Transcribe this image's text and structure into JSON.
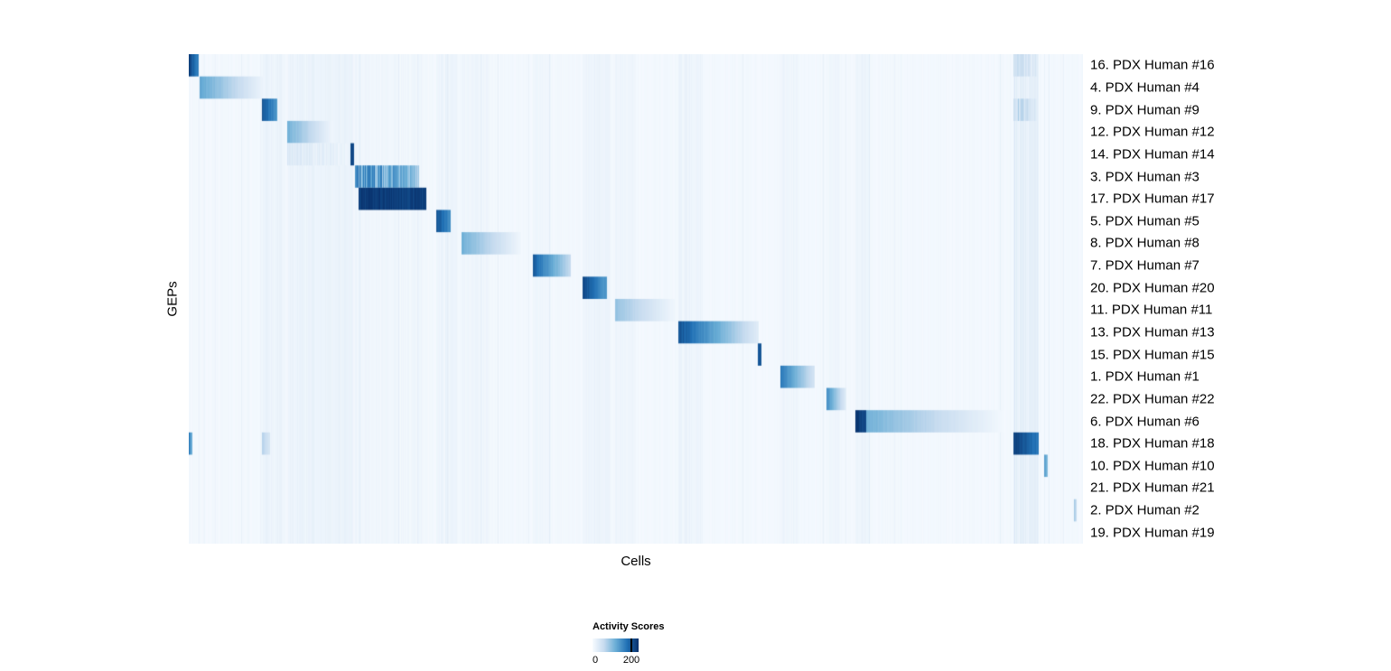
{
  "page": {
    "background": "#ffffff"
  },
  "chart_data": {
    "type": "heatmap",
    "title": "",
    "xlabel": "Cells",
    "ylabel": "GEPs",
    "rows": [
      "16. PDX Human #16",
      "4. PDX Human #4",
      "9. PDX Human #9",
      "12. PDX Human #12",
      "14. PDX Human #14",
      "3. PDX Human #3",
      "17. PDX Human #17",
      "5. PDX Human #5",
      "8. PDX Human #8",
      "7. PDX Human #7",
      "20. PDX Human #20",
      "11. PDX Human #11",
      "13. PDX Human #13",
      "15. PDX Human #15",
      "1. PDX Human #1",
      "22. PDX Human #22",
      "6. PDX Human #6",
      "18. PDX Human #18",
      "10. PDX Human #10",
      "21. PDX Human #21",
      "2. PDX Human #2",
      "19. PDX Human #19"
    ],
    "colorbar": {
      "title": "Activity Scores",
      "min": 0,
      "max": 200,
      "tick_labels": [
        "0",
        "200"
      ],
      "tick_positions": [
        0,
        0.82
      ],
      "colormap": "Blues",
      "anchors": [
        [
          0.0,
          "#f7fbff"
        ],
        [
          0.25,
          "#c6dbef"
        ],
        [
          0.5,
          "#6baed6"
        ],
        [
          0.75,
          "#2171b5"
        ],
        [
          1.0,
          "#08306b"
        ]
      ]
    },
    "base_value": 0.02,
    "bands": [
      {
        "x0": 0.08,
        "x1": 0.105,
        "v": 0.04
      },
      {
        "x0": 0.11,
        "x1": 0.184,
        "v": 0.035
      },
      {
        "x0": 0.186,
        "x1": 0.266,
        "v": 0.015
      },
      {
        "x0": 0.277,
        "x1": 0.3,
        "v": 0.03
      },
      {
        "x0": 0.305,
        "x1": 0.335,
        "v": 0.02
      },
      {
        "x0": 0.385,
        "x1": 0.405,
        "v": 0.02
      },
      {
        "x0": 0.44,
        "x1": 0.472,
        "v": 0.035
      },
      {
        "x0": 0.477,
        "x1": 0.5,
        "v": 0.02
      },
      {
        "x0": 0.547,
        "x1": 0.575,
        "v": 0.03
      },
      {
        "x0": 0.662,
        "x1": 0.682,
        "v": 0.02
      },
      {
        "x0": 0.713,
        "x1": 0.728,
        "v": 0.02
      },
      {
        "x0": 0.745,
        "x1": 0.762,
        "v": 0.03
      },
      {
        "x0": 0.922,
        "x1": 0.95,
        "v": 0.06
      }
    ],
    "segments": [
      {
        "row": 0,
        "x0": 0.0,
        "x1": 0.011,
        "v0": 0.95,
        "v1": 0.7
      },
      {
        "row": 0,
        "x0": 0.922,
        "x1": 0.948,
        "v0": 0.3,
        "v1": 0.15,
        "striate": true
      },
      {
        "row": 1,
        "x0": 0.012,
        "x1": 0.085,
        "v0": 0.55,
        "v1": 0.05
      },
      {
        "row": 2,
        "x0": 0.082,
        "x1": 0.099,
        "v0": 0.9,
        "v1": 0.6
      },
      {
        "row": 2,
        "x0": 0.922,
        "x1": 0.948,
        "v0": 0.35,
        "v1": 0.18,
        "striate": true
      },
      {
        "row": 3,
        "x0": 0.11,
        "x1": 0.162,
        "v0": 0.5,
        "v1": 0.04
      },
      {
        "row": 4,
        "x0": 0.11,
        "x1": 0.18,
        "v0": 0.16,
        "v1": 0.08,
        "striate": true
      },
      {
        "row": 4,
        "x0": 0.1805,
        "x1": 0.1845,
        "v0": 0.95,
        "v1": 0.95
      },
      {
        "row": 5,
        "x0": 0.186,
        "x1": 0.258,
        "v0": 0.8,
        "v1": 0.5,
        "striate": true
      },
      {
        "row": 6,
        "x0": 0.19,
        "x1": 0.266,
        "v0": 1.0,
        "v1": 0.97
      },
      {
        "row": 7,
        "x0": 0.277,
        "x1": 0.293,
        "v0": 0.9,
        "v1": 0.65
      },
      {
        "row": 8,
        "x0": 0.305,
        "x1": 0.372,
        "v0": 0.5,
        "v1": 0.04
      },
      {
        "row": 9,
        "x0": 0.385,
        "x1": 0.427,
        "v0": 0.85,
        "v1": 0.25
      },
      {
        "row": 10,
        "x0": 0.44,
        "x1": 0.468,
        "v0": 0.95,
        "v1": 0.6
      },
      {
        "row": 11,
        "x0": 0.477,
        "x1": 0.543,
        "v0": 0.4,
        "v1": 0.04
      },
      {
        "row": 12,
        "x0": 0.547,
        "x1": 0.637,
        "v0": 0.9,
        "v1": 0.12
      },
      {
        "row": 13,
        "x0": 0.6365,
        "x1": 0.6405,
        "v0": 0.9,
        "v1": 0.85
      },
      {
        "row": 14,
        "x0": 0.662,
        "x1": 0.7,
        "v0": 0.75,
        "v1": 0.18
      },
      {
        "row": 15,
        "x0": 0.713,
        "x1": 0.735,
        "v0": 0.65,
        "v1": 0.12
      },
      {
        "row": 16,
        "x0": 0.745,
        "x1": 0.758,
        "v0": 1.0,
        "v1": 0.95
      },
      {
        "row": 16,
        "x0": 0.758,
        "x1": 0.912,
        "v0": 0.5,
        "v1": 0.02
      },
      {
        "row": 17,
        "x0": 0.0,
        "x1": 0.004,
        "v0": 0.7,
        "v1": 0.5
      },
      {
        "row": 17,
        "x0": 0.082,
        "x1": 0.091,
        "v0": 0.3,
        "v1": 0.18
      },
      {
        "row": 17,
        "x0": 0.922,
        "x1": 0.95,
        "v0": 0.97,
        "v1": 0.75
      },
      {
        "row": 18,
        "x0": 0.957,
        "x1": 0.961,
        "v0": 0.6,
        "v1": 0.45
      },
      {
        "row": 20,
        "x0": 0.99,
        "x1": 0.993,
        "v0": 0.35,
        "v1": 0.25
      }
    ]
  }
}
